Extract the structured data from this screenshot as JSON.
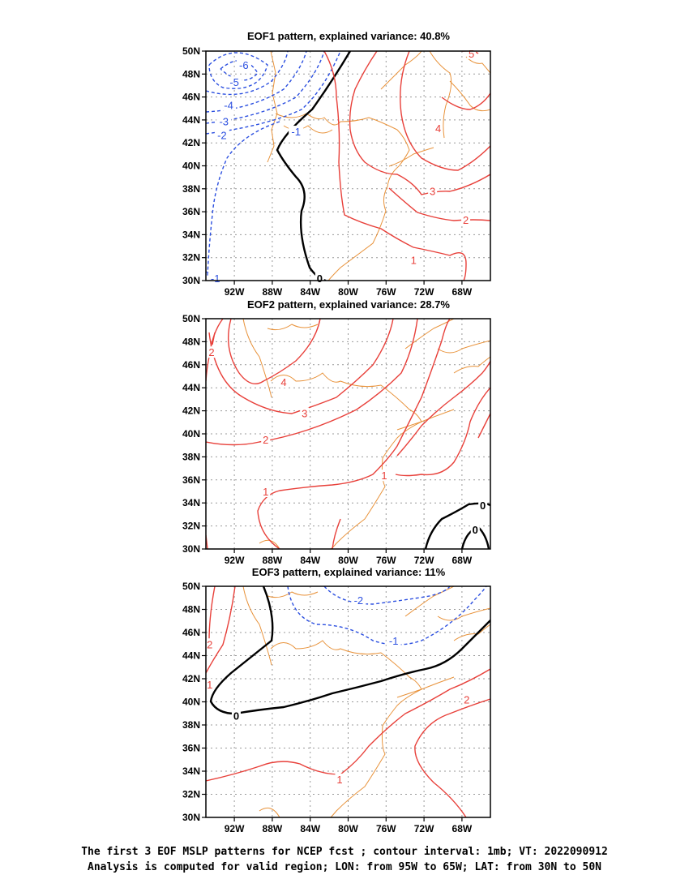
{
  "chart_data": [
    {
      "type": "contour",
      "title": "EOF1 pattern, explained variance: 40.8%",
      "x_ticks": [
        "92W",
        "88W",
        "84W",
        "80W",
        "76W",
        "72W",
        "68W"
      ],
      "y_ticks": [
        "30N",
        "32N",
        "34N",
        "36N",
        "38N",
        "40N",
        "42N",
        "44N",
        "46N",
        "48N",
        "50N"
      ],
      "xlim": [
        -95,
        -65
      ],
      "ylim": [
        30,
        50
      ],
      "grid": true,
      "contour_interval": 1,
      "contour_labels": [
        {
          "text": "-6",
          "lon": -91.0,
          "lat": 48.8,
          "sign": "neg"
        },
        {
          "text": "-5",
          "lon": -92.0,
          "lat": 47.3,
          "sign": "neg"
        },
        {
          "text": "-4",
          "lon": -92.6,
          "lat": 45.3,
          "sign": "neg"
        },
        {
          "text": "-3",
          "lon": -93.1,
          "lat": 43.9,
          "sign": "neg"
        },
        {
          "text": "-2",
          "lon": -93.3,
          "lat": 42.7,
          "sign": "neg"
        },
        {
          "text": "-1",
          "lon": -85.5,
          "lat": 43.0,
          "sign": "neg"
        },
        {
          "text": "-1",
          "lon": -94.0,
          "lat": 30.2,
          "sign": "neg"
        },
        {
          "text": "0",
          "lon": -83.0,
          "lat": 30.2,
          "sign": "zero"
        },
        {
          "text": "1",
          "lon": -73.1,
          "lat": 31.8,
          "sign": "pos"
        },
        {
          "text": "2",
          "lon": -67.6,
          "lat": 35.3,
          "sign": "pos"
        },
        {
          "text": "3",
          "lon": -71.1,
          "lat": 37.8,
          "sign": "pos"
        },
        {
          "text": "4",
          "lon": -70.5,
          "lat": 43.3,
          "sign": "pos"
        },
        {
          "text": "5",
          "lon": -67.0,
          "lat": 49.8,
          "sign": "pos"
        }
      ]
    },
    {
      "type": "contour",
      "title": "EOF2 pattern, explained variance: 28.7%",
      "x_ticks": [
        "92W",
        "88W",
        "84W",
        "80W",
        "76W",
        "72W",
        "68W"
      ],
      "y_ticks": [
        "30N",
        "32N",
        "34N",
        "36N",
        "38N",
        "40N",
        "42N",
        "44N",
        "46N",
        "48N",
        "50N"
      ],
      "xlim": [
        -95,
        -65
      ],
      "ylim": [
        30,
        50
      ],
      "grid": true,
      "contour_interval": 1,
      "contour_labels": [
        {
          "text": "2",
          "lon": -94.4,
          "lat": 47.1,
          "sign": "pos"
        },
        {
          "text": "4",
          "lon": -86.8,
          "lat": 44.5,
          "sign": "pos"
        },
        {
          "text": "3",
          "lon": -84.6,
          "lat": 41.8,
          "sign": "pos"
        },
        {
          "text": "2",
          "lon": -88.7,
          "lat": 39.5,
          "sign": "pos"
        },
        {
          "text": "1",
          "lon": -88.7,
          "lat": 35.0,
          "sign": "pos"
        },
        {
          "text": "1",
          "lon": -76.2,
          "lat": 36.4,
          "sign": "pos"
        },
        {
          "text": "0",
          "lon": -65.8,
          "lat": 33.8,
          "sign": "zero"
        },
        {
          "text": "0",
          "lon": -66.6,
          "lat": 31.7,
          "sign": "zero"
        }
      ]
    },
    {
      "type": "contour",
      "title": "EOF3 pattern, explained variance: 11%",
      "x_ticks": [
        "92W",
        "88W",
        "84W",
        "80W",
        "76W",
        "72W",
        "68W"
      ],
      "y_ticks": [
        "30N",
        "32N",
        "34N",
        "36N",
        "38N",
        "40N",
        "42N",
        "44N",
        "46N",
        "48N",
        "50N"
      ],
      "xlim": [
        -95,
        -65
      ],
      "ylim": [
        30,
        50
      ],
      "grid": true,
      "contour_interval": 1,
      "contour_labels": [
        {
          "text": "-2",
          "lon": -78.9,
          "lat": 48.8,
          "sign": "neg"
        },
        {
          "text": "-1",
          "lon": -75.2,
          "lat": 45.3,
          "sign": "neg"
        },
        {
          "text": "0",
          "lon": -91.8,
          "lat": 38.8,
          "sign": "zero"
        },
        {
          "text": "2",
          "lon": -67.5,
          "lat": 40.2,
          "sign": "pos"
        },
        {
          "text": "1",
          "lon": -80.9,
          "lat": 33.3,
          "sign": "pos"
        },
        {
          "text": "1",
          "lon": -94.6,
          "lat": 41.5,
          "sign": "pos"
        },
        {
          "text": "2",
          "lon": -94.6,
          "lat": 45.0,
          "sign": "pos"
        }
      ]
    }
  ],
  "caption": {
    "line1": "The first 3 EOF MSLP patterns for NCEP fcst ; contour interval: 1mb; VT: 2022090912",
    "line2": "Analysis is computed for valid region; LON: from 95W to 65W; LAT: from 30N to 50N"
  },
  "colors": {
    "positive_contour": "#e8403a",
    "negative_contour": "#2b4fe0",
    "zero_contour": "#000000",
    "coastline": "#e8923a",
    "grid": "#999999"
  }
}
